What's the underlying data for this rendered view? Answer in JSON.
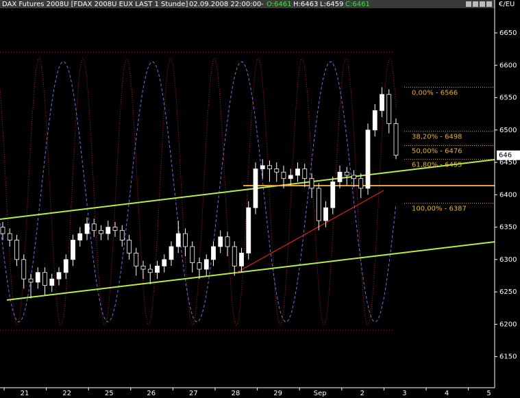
{
  "chart_data": {
    "type": "candlestick",
    "header": {
      "title": "DAX Futures 2008U [FDAX 2008U EUX LAST 1 Stunde]",
      "datetime": "02.09.2008 22:00:00",
      "separator": "-",
      "open": "O:6461",
      "high": "H:6463",
      "low": "L:6459",
      "close": "C:6461"
    },
    "currency": "€/EU",
    "last_label": "646",
    "categories": [
      "21",
      "22",
      "25",
      "26",
      "27",
      "28",
      "29",
      "Sep",
      "2",
      "3",
      "4",
      "5"
    ],
    "open": [
      6350,
      6340,
      6330,
      6300,
      6270,
      6265,
      6280,
      6260,
      6270,
      6280,
      6300,
      6330,
      6340,
      6355,
      6345,
      6340,
      6350,
      6345,
      6330,
      6310,
      6290,
      6285,
      6280,
      6290,
      6300,
      6320,
      6340,
      6320,
      6295,
      6285,
      6300,
      6320,
      6335,
      6320,
      6290,
      6310,
      6380,
      6440,
      6445,
      6440,
      6435,
      6425,
      6430,
      6440,
      6425,
      6410,
      6360,
      6380,
      6420,
      6435,
      6430,
      6425,
      6410,
      6500,
      6530,
      6555,
      6510
    ],
    "high": [
      6358,
      6348,
      6338,
      6308,
      6278,
      6288,
      6288,
      6278,
      6288,
      6308,
      6338,
      6350,
      6365,
      6363,
      6353,
      6360,
      6358,
      6353,
      6338,
      6318,
      6298,
      6293,
      6298,
      6308,
      6328,
      6360,
      6348,
      6328,
      6303,
      6308,
      6328,
      6345,
      6343,
      6328,
      6318,
      6390,
      6450,
      6455,
      6453,
      6450,
      6445,
      6440,
      6450,
      6448,
      6433,
      6418,
      6390,
      6428,
      6445,
      6443,
      6438,
      6433,
      6510,
      6540,
      6566,
      6563,
      6518
    ],
    "low": [
      6330,
      6320,
      6290,
      6255,
      6240,
      6255,
      6245,
      6250,
      6260,
      6270,
      6290,
      6320,
      6330,
      6335,
      6330,
      6330,
      6335,
      6320,
      6300,
      6275,
      6270,
      6262,
      6270,
      6280,
      6290,
      6310,
      6305,
      6280,
      6270,
      6275,
      6290,
      6310,
      6305,
      6275,
      6280,
      6300,
      6370,
      6425,
      6420,
      6420,
      6410,
      6415,
      6420,
      6412,
      6395,
      6345,
      6350,
      6370,
      6410,
      6415,
      6412,
      6395,
      6400,
      6490,
      6520,
      6495,
      6455
    ],
    "close": [
      6340,
      6330,
      6300,
      6270,
      6265,
      6280,
      6260,
      6270,
      6280,
      6300,
      6330,
      6340,
      6355,
      6345,
      6340,
      6350,
      6345,
      6330,
      6310,
      6290,
      6285,
      6280,
      6290,
      6300,
      6320,
      6340,
      6320,
      6295,
      6285,
      6300,
      6320,
      6335,
      6320,
      6290,
      6310,
      6380,
      6440,
      6445,
      6440,
      6435,
      6425,
      6430,
      6440,
      6425,
      6410,
      6360,
      6380,
      6420,
      6435,
      6430,
      6425,
      6410,
      6500,
      6530,
      6555,
      6510,
      6461
    ],
    "ylim": [
      6102,
      6686
    ],
    "yticks": [
      6150,
      6200,
      6250,
      6300,
      6350,
      6400,
      6450,
      6500,
      6550,
      6600,
      6650
    ],
    "fib_levels": [
      {
        "value": 6566,
        "label": "0,00% - 6566"
      },
      {
        "value": 6498,
        "label": "38,20% - 6498"
      },
      {
        "value": 6476,
        "label": "50,00% - 6476"
      },
      {
        "value": 6455,
        "label": "61,80% - 6455"
      },
      {
        "value": 6387,
        "label": "100,00% - 6387"
      }
    ],
    "fib_color": "#e8b030",
    "up_color": "#ffffff",
    "down_color": "#000000"
  }
}
